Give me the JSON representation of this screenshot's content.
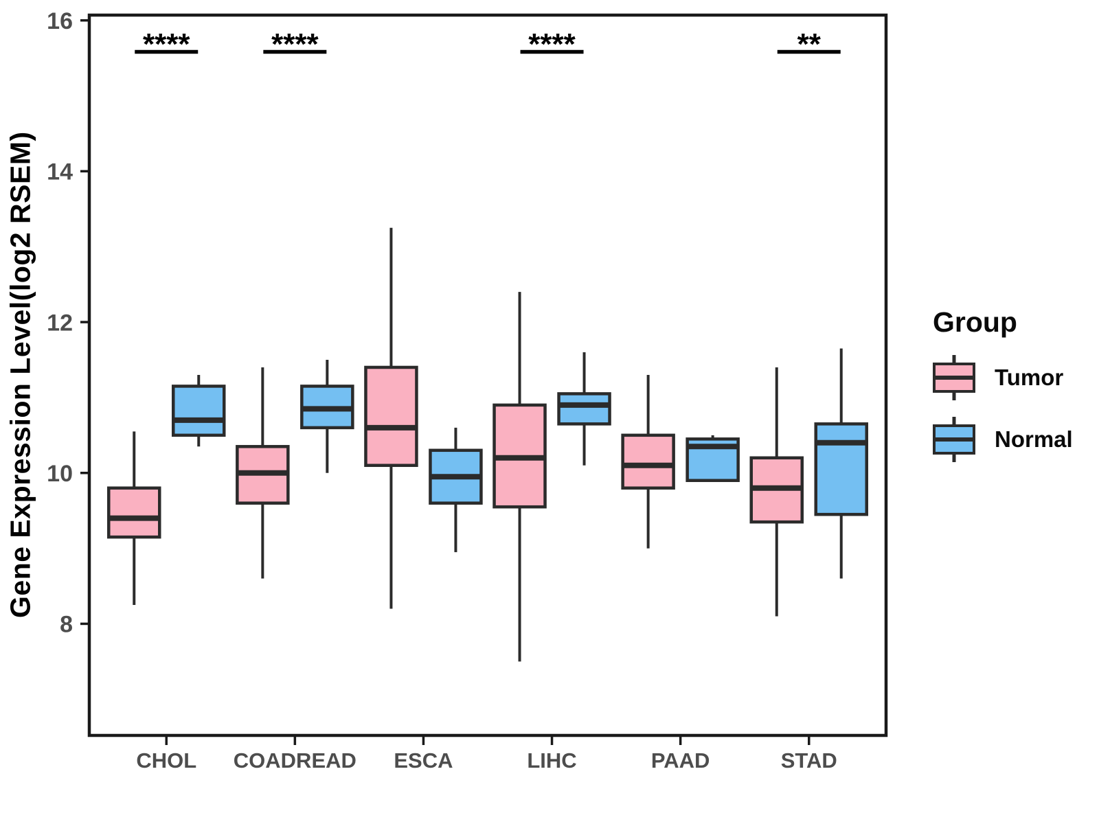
{
  "figure": {
    "background": "#FFFFFF",
    "ylabel": "Gene Expression Level(log2 RSEM)"
  },
  "legend": {
    "title": "Group",
    "entries": [
      {
        "label": "Tumor",
        "color": "#FAB1C1"
      },
      {
        "label": "Normal",
        "color": "#74BFF2"
      }
    ]
  },
  "chart_data": {
    "type": "boxplot",
    "title": "",
    "xlabel": "",
    "ylabel": "Gene Expression Level(log2 RSEM)",
    "categories": [
      "CHOL",
      "COADREAD",
      "ESCA",
      "LIHC",
      "PAAD",
      "STAD"
    ],
    "yticks": [
      8,
      10,
      12,
      14,
      16
    ],
    "ylim": [
      6.52,
      16.07
    ],
    "grid": false,
    "legend_position": "right",
    "series": [
      {
        "name": "Tumor",
        "color": "#FAB1C1",
        "boxes": [
          {
            "category": "CHOL",
            "min": 8.25,
            "q1": 9.15,
            "median": 9.4,
            "q3": 9.8,
            "max": 10.55
          },
          {
            "category": "COADREAD",
            "min": 8.6,
            "q1": 9.6,
            "median": 10.0,
            "q3": 10.35,
            "max": 11.4
          },
          {
            "category": "ESCA",
            "min": 8.2,
            "q1": 10.1,
            "median": 10.6,
            "q3": 11.4,
            "max": 13.25
          },
          {
            "category": "LIHC",
            "min": 7.5,
            "q1": 9.55,
            "median": 10.2,
            "q3": 10.9,
            "max": 12.4
          },
          {
            "category": "PAAD",
            "min": 9.0,
            "q1": 9.8,
            "median": 10.1,
            "q3": 10.5,
            "max": 11.3
          },
          {
            "category": "STAD",
            "min": 8.1,
            "q1": 9.35,
            "median": 9.8,
            "q3": 10.2,
            "max": 11.4
          }
        ]
      },
      {
        "name": "Normal",
        "color": "#74BFF2",
        "boxes": [
          {
            "category": "CHOL",
            "min": 10.35,
            "q1": 10.5,
            "median": 10.7,
            "q3": 11.15,
            "max": 11.3
          },
          {
            "category": "COADREAD",
            "min": 10.0,
            "q1": 10.6,
            "median": 10.85,
            "q3": 11.15,
            "max": 11.5
          },
          {
            "category": "ESCA",
            "min": 8.95,
            "q1": 9.6,
            "median": 9.95,
            "q3": 10.3,
            "max": 10.6
          },
          {
            "category": "LIHC",
            "min": 10.1,
            "q1": 10.65,
            "median": 10.9,
            "q3": 11.05,
            "max": 11.6
          },
          {
            "category": "PAAD",
            "min": 9.9,
            "q1": 9.9,
            "median": 10.35,
            "q3": 10.45,
            "max": 10.5
          },
          {
            "category": "STAD",
            "min": 8.6,
            "q1": 9.45,
            "median": 10.4,
            "q3": 10.65,
            "max": 11.65
          }
        ]
      }
    ],
    "annotations": [
      {
        "category": "CHOL",
        "label": "****"
      },
      {
        "category": "COADREAD",
        "label": "****"
      },
      {
        "category": "LIHC",
        "label": "****"
      },
      {
        "category": "STAD",
        "label": "**"
      }
    ]
  },
  "colors": {
    "tumor_fill": "#FAB1C1",
    "normal_fill": "#74BFF2",
    "box_border": "#2B2B2B",
    "panel_border": "#1A1A1A",
    "axis_tick": "#1A1A1A",
    "axis_text": "#4D4D4D",
    "axis_title": "#000000",
    "annotation": "#000000"
  }
}
